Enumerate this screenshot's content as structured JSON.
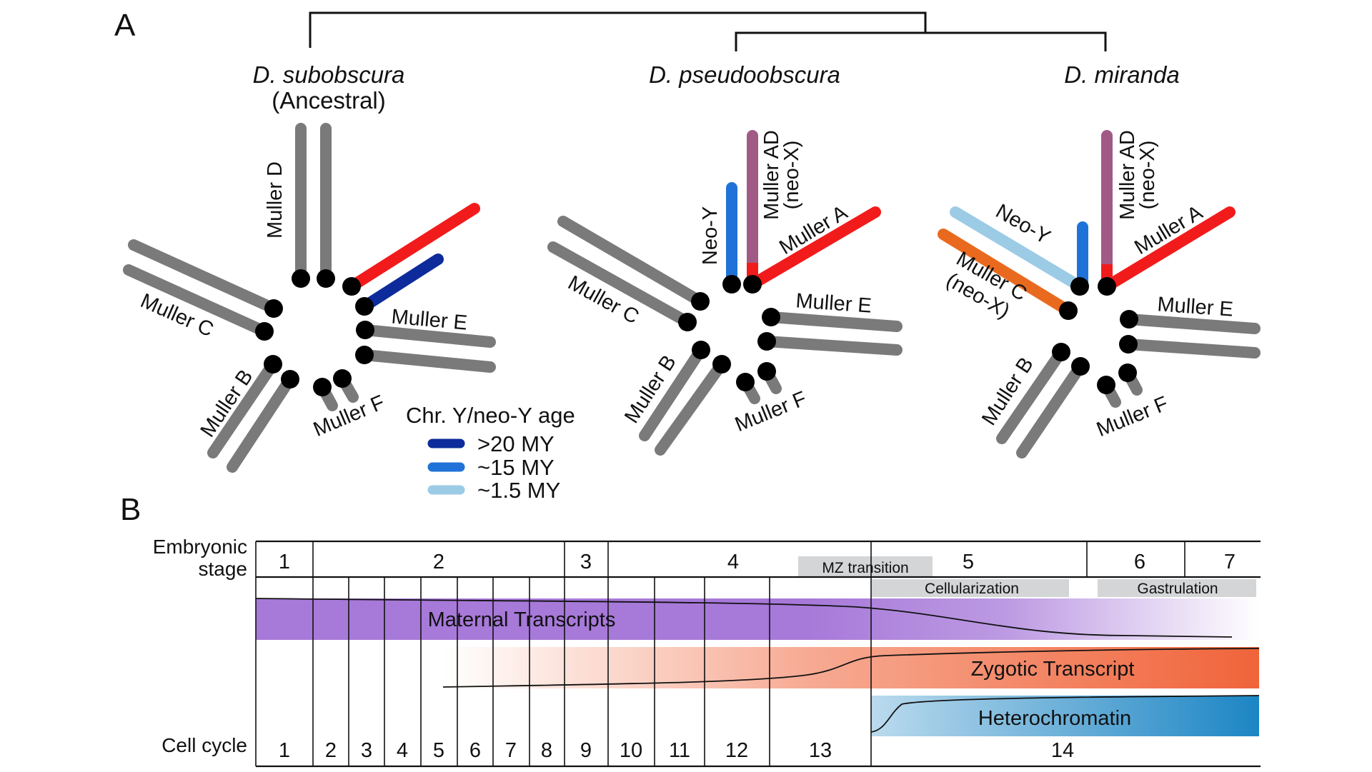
{
  "panel_a": {
    "label": "A",
    "species": {
      "subobscura": {
        "name": "D. subobscura",
        "note": "(Ancestral)"
      },
      "pseudoobscura": {
        "name": "D. pseudoobscura"
      },
      "miranda": {
        "name": "D. miranda"
      }
    },
    "arm_labels": {
      "muller_a": "Muller A",
      "muller_b": "Muller B",
      "muller_c": "Muller C",
      "muller_d": "Muller D",
      "muller_e": "Muller E",
      "muller_f": "Muller F",
      "muller_ad": "Muller AD",
      "neo_x": "(neo-X)",
      "neo_y": "Neo-Y"
    },
    "legend": {
      "title": "Chr. Y/neo-Y age",
      "items": [
        {
          "label": ">20 MY",
          "color": "#0d2b9a"
        },
        {
          "label": "~15 MY",
          "color": "#1f73d8"
        },
        {
          "label": "~1.5 MY",
          "color": "#9ccbe6"
        }
      ]
    },
    "colors": {
      "autosome": "#7a7a7a",
      "x_linked": "#f21b1b",
      "muller_ad": "#a15a86",
      "neo_x_c": "#e96a1f",
      "centromere": "#000000"
    }
  },
  "panel_b": {
    "label": "B",
    "stage_header": [
      "Embryonic",
      "stage"
    ],
    "stages": [
      "1",
      "2",
      "3",
      "4",
      "5",
      "6",
      "7"
    ],
    "events": {
      "mz_transition": "MZ transition",
      "cellularization": "Cellularization",
      "gastrulation": "Gastrulation"
    },
    "bands": {
      "maternal": "Maternal Transcripts",
      "zygotic": "Zygotic Transcript",
      "heterochromatin": "Heterochromatin"
    },
    "cell_cycle_header": "Cell cycle",
    "cycles": [
      "1",
      "2",
      "3",
      "4",
      "5",
      "6",
      "7",
      "8",
      "9",
      "10",
      "11",
      "12",
      "13",
      "14"
    ],
    "colors": {
      "maternal": "#a779d9",
      "zygotic": "#f0643a",
      "heterochromatin": "#1c85c4",
      "event_box": "#d3d5d7"
    }
  }
}
